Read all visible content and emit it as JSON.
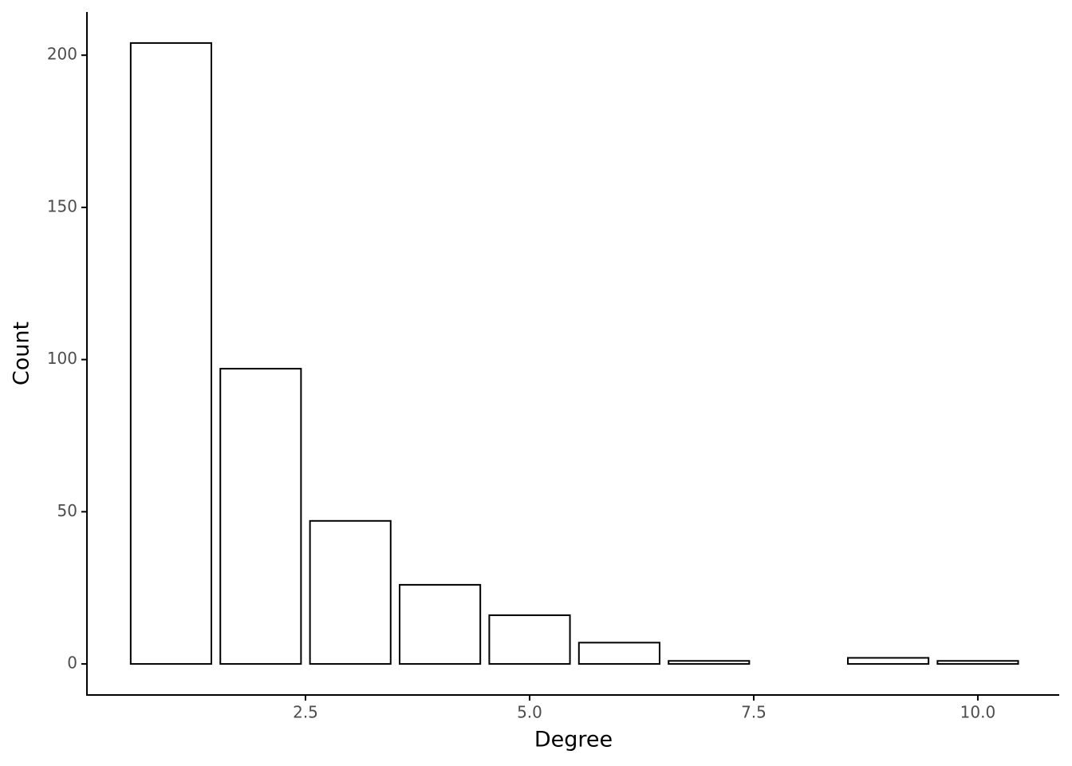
{
  "chart_data": {
    "type": "bar",
    "xlabel": "Degree",
    "ylabel": "Count",
    "x": [
      1,
      2,
      3,
      4,
      5,
      6,
      7,
      9,
      10
    ],
    "values": [
      204,
      97,
      47,
      26,
      16,
      7,
      1,
      2,
      1
    ],
    "color": "#ffffff",
    "edgecolor": "#000000",
    "xlim": [
      0.062,
      10.908
    ],
    "xticks": [
      2.5,
      {
        "value": 5,
        "label": "5.0"
      },
      7.5,
      {
        "value": 10,
        "label": "10.0"
      }
    ],
    "ylim": [
      -10.2,
      214.2
    ],
    "yticks": [
      0,
      50,
      100,
      150,
      200
    ],
    "grid": false
  }
}
